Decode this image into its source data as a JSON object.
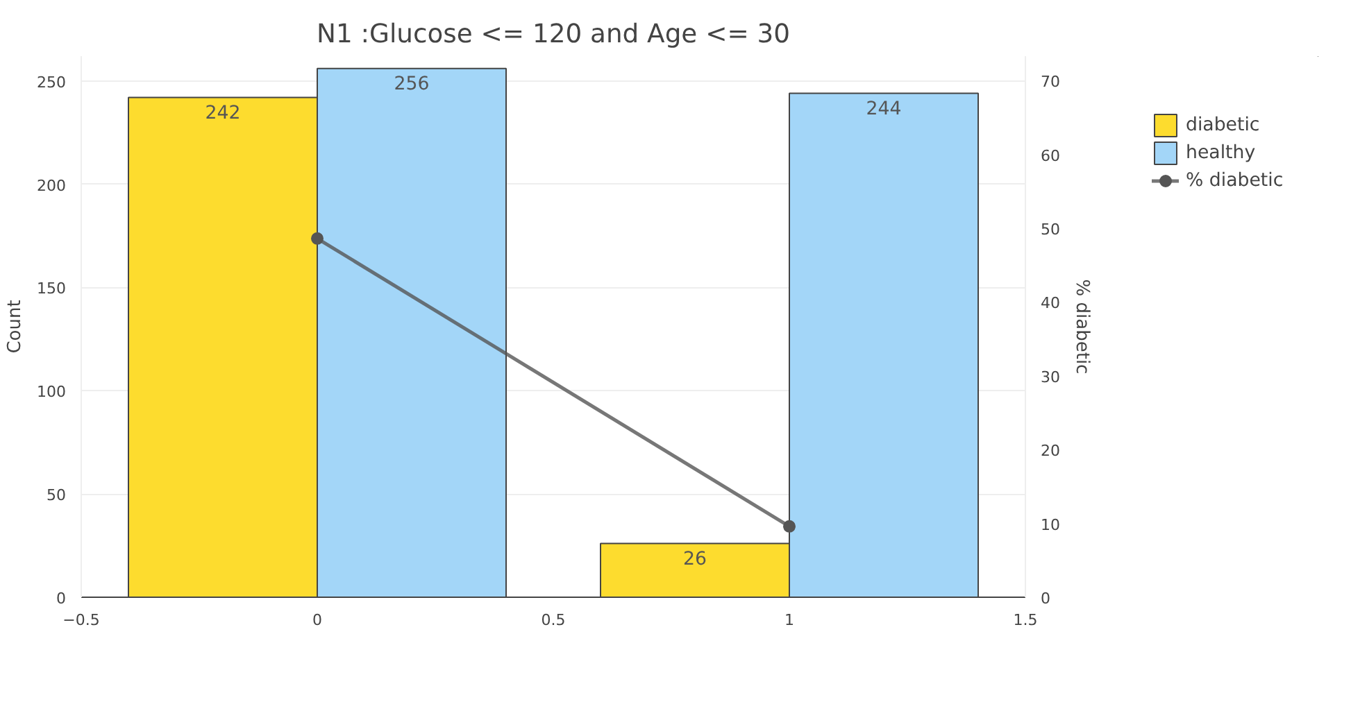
{
  "chart_data": {
    "type": "bar",
    "title": "N1 :Glucose <= 120 and Age <= 30",
    "x": [
      0,
      1
    ],
    "ylabel": "Count",
    "y2label": "% diabetic",
    "series": [
      {
        "name": "diabetic",
        "color": "#fddc2e",
        "values": [
          242,
          26
        ],
        "value_labels": [
          "242",
          "26"
        ]
      },
      {
        "name": "healthy",
        "color": "#a3d6f8",
        "values": [
          256,
          244
        ],
        "value_labels": [
          "256",
          "244"
        ]
      },
      {
        "name": "% diabetic",
        "type": "line",
        "axis": "y2",
        "color": "#555555",
        "values": [
          48.6,
          9.6
        ],
        "marker": "circle"
      }
    ],
    "xlim": [
      -0.5,
      1.5
    ],
    "xticks": [
      {
        "value": -0.5,
        "label": "−0.5"
      },
      0,
      0.5,
      1,
      1.5
    ],
    "ylim": [
      0,
      262
    ],
    "yticks": [
      0,
      50,
      100,
      150,
      200,
      250
    ],
    "y2lim": [
      0,
      73.3
    ],
    "y2ticks": [
      0,
      10,
      20,
      30,
      40,
      50,
      60,
      70
    ],
    "grid": "y",
    "legend": "top right"
  }
}
